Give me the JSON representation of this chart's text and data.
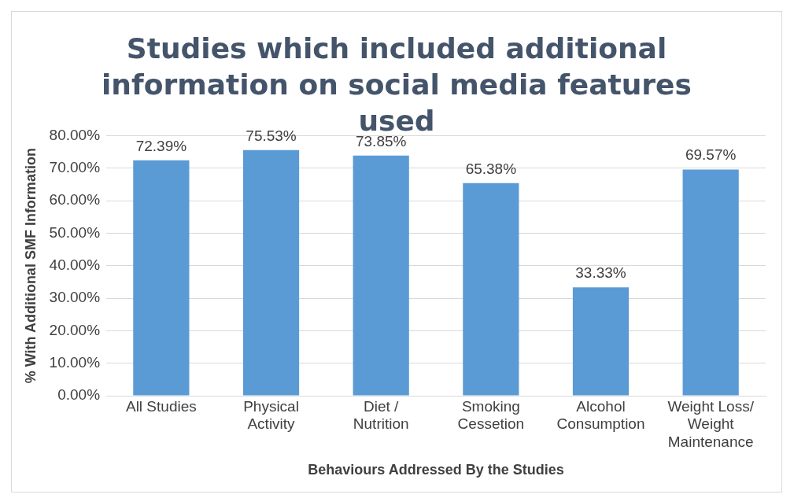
{
  "chart_data": {
    "type": "bar",
    "title": "Studies which included additional information on social media features used",
    "xlabel": "Behaviours Addressed By the Studies",
    "ylabel": "% With Additional SMF Information",
    "categories": [
      "All Studies",
      "Physical Activity",
      "Diet / Nutrition",
      "Smoking Cessetion",
      "Alcohol Consumption",
      "Weight Loss/ Weight Maintenance"
    ],
    "values": [
      72.39,
      75.53,
      73.85,
      65.38,
      33.33,
      69.57
    ],
    "value_labels": [
      "72.39%",
      "75.53%",
      "73.85%",
      "65.38%",
      "33.33%",
      "69.57%"
    ],
    "color": "#5b9bd5",
    "ylim": [
      0,
      80
    ],
    "yticks": [
      {
        "value": 0,
        "label": "0.00%"
      },
      {
        "value": 10,
        "label": "10.00%"
      },
      {
        "value": 20,
        "label": "20.00%"
      },
      {
        "value": 30,
        "label": "30.00%"
      },
      {
        "value": 40,
        "label": "40.00%"
      },
      {
        "value": 50,
        "label": "50.00%"
      },
      {
        "value": 60,
        "label": "60.00%"
      },
      {
        "value": 70,
        "label": "70.00%"
      },
      {
        "value": 80,
        "label": "80.00%"
      }
    ],
    "grid": "y"
  }
}
